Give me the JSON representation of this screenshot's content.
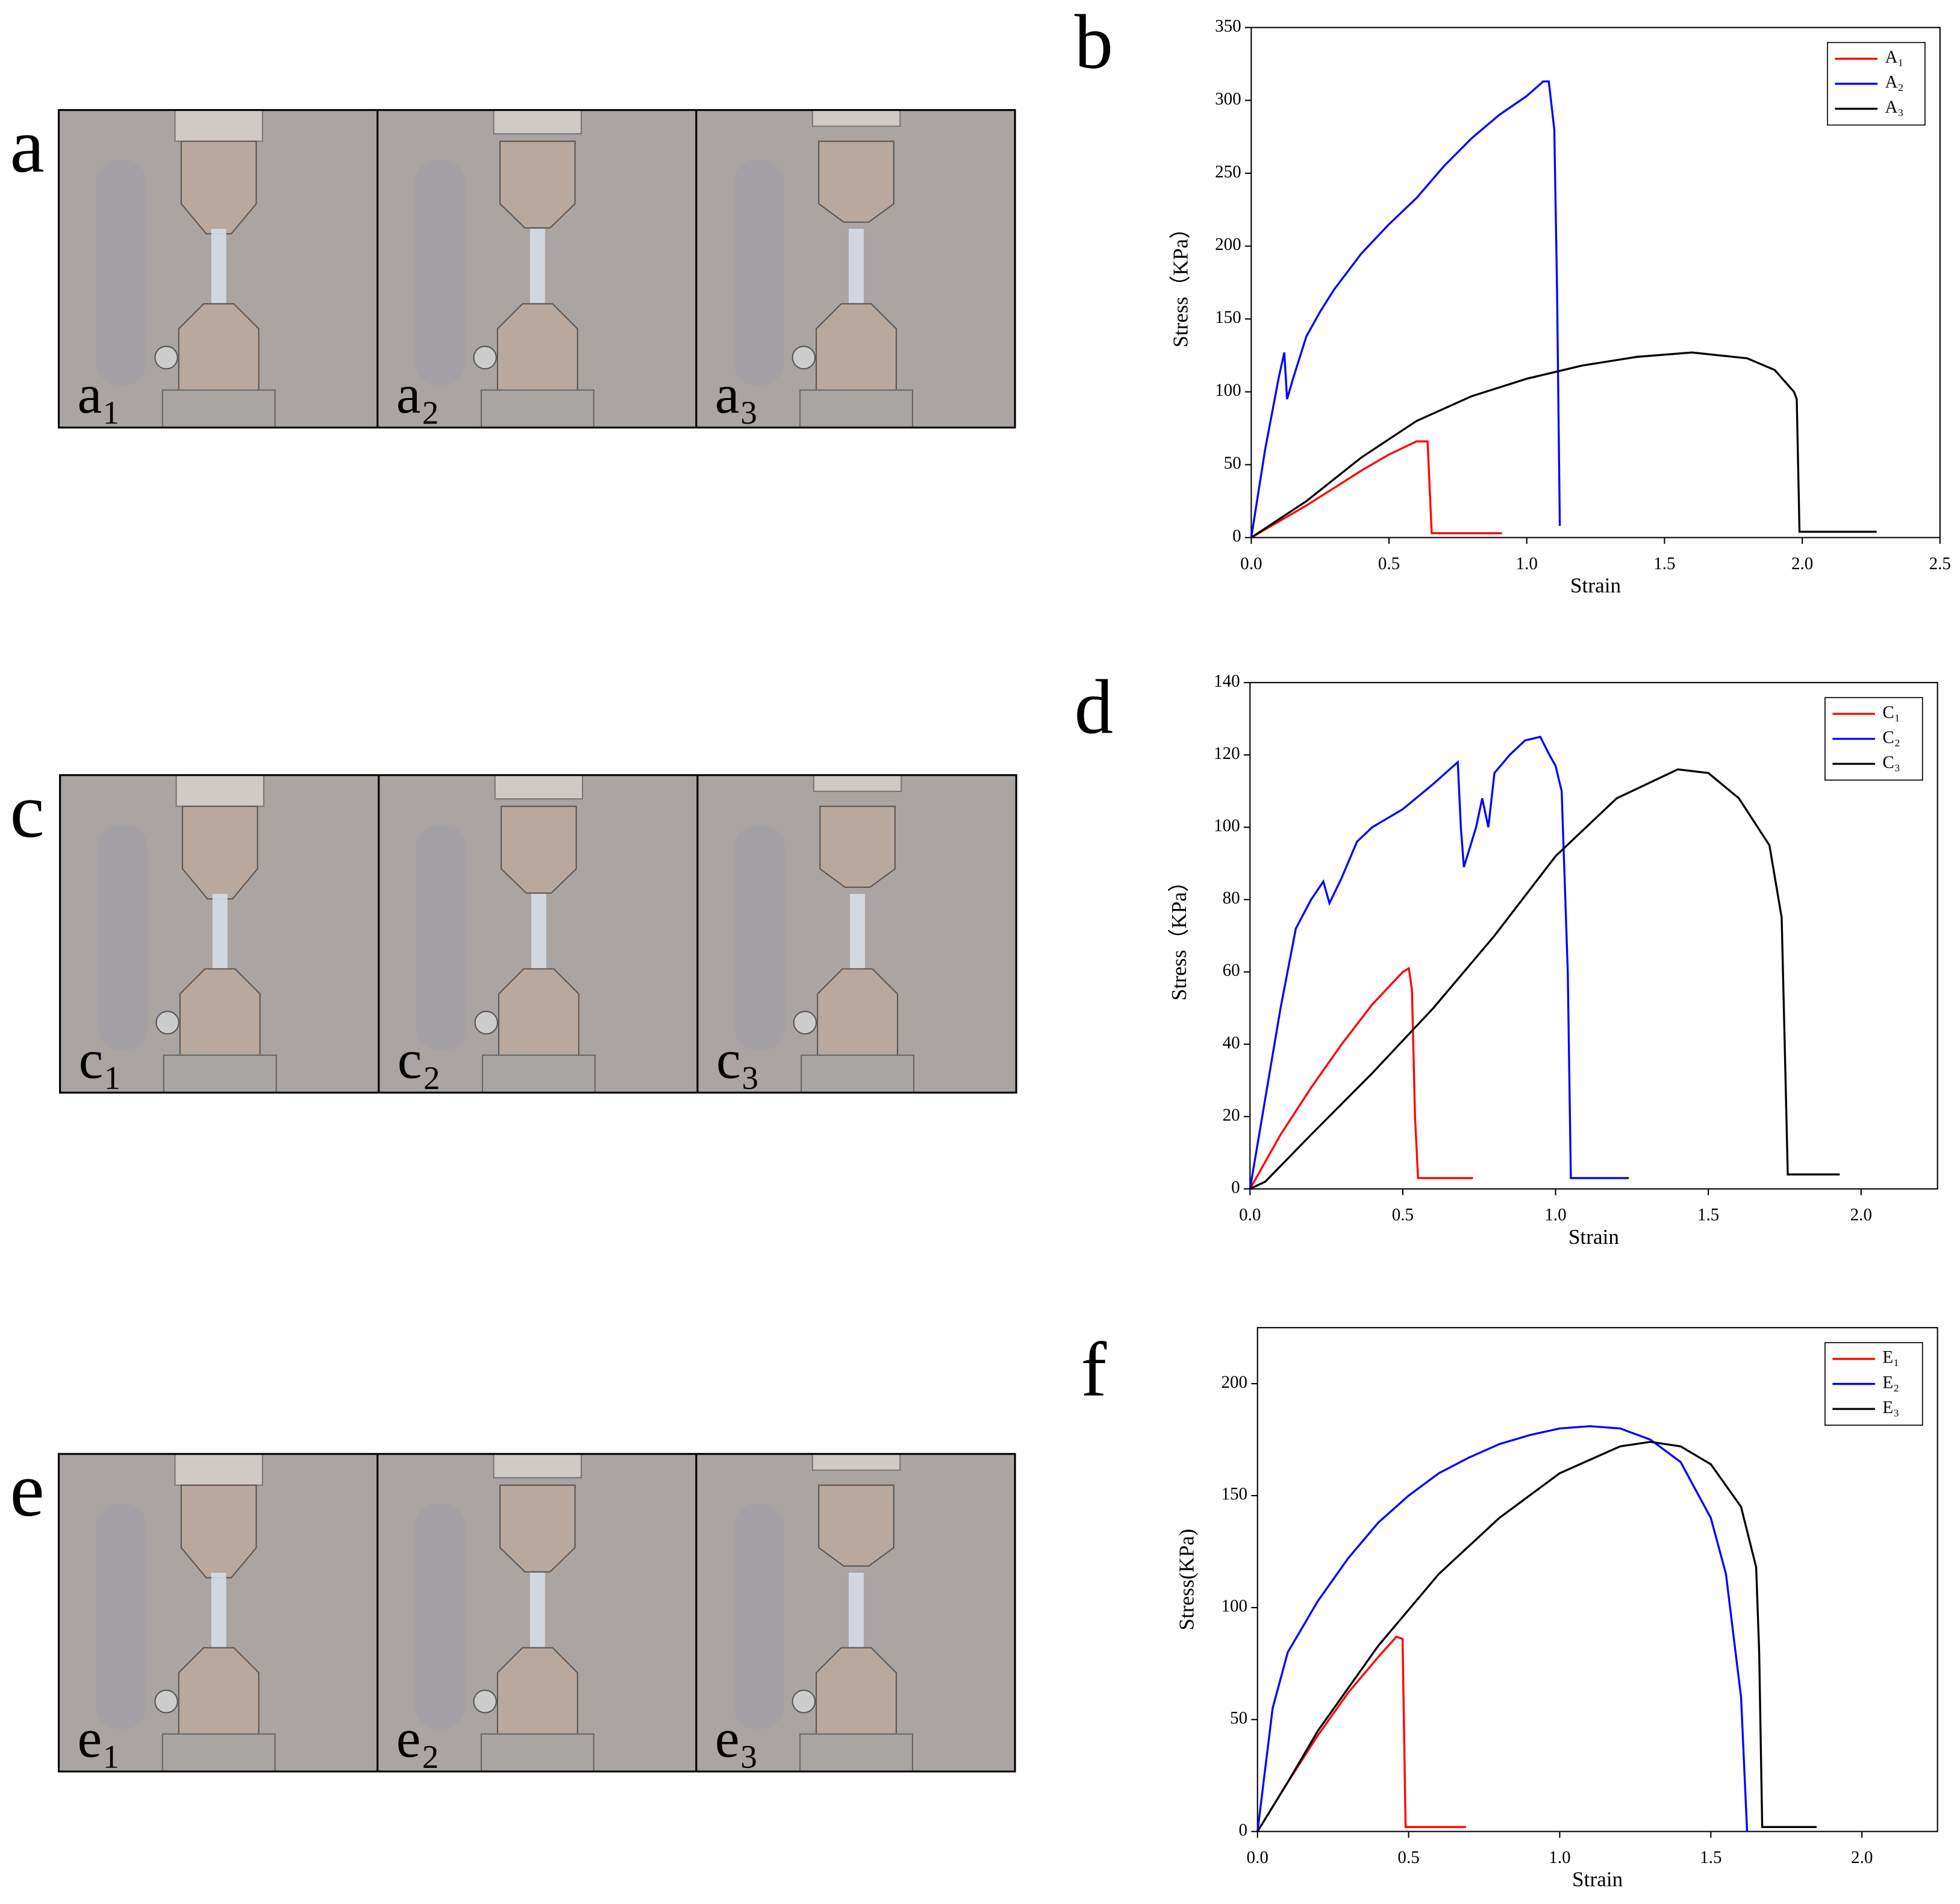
{
  "figure": {
    "panels": [
      {
        "letter": "a",
        "photos": [
          "a₁",
          "a₂",
          "a₃"
        ]
      },
      {
        "letter": "c",
        "photos": [
          "c₁",
          "c₂",
          "c₃"
        ]
      },
      {
        "letter": "e",
        "photos": [
          "e₁",
          "e₂",
          "e₃"
        ]
      }
    ]
  },
  "chart_data": [
    {
      "type": "line",
      "panel_label": "b",
      "x_label": "Strain",
      "y_label": "Stress（KPa）",
      "xlim": [
        0,
        2.5
      ],
      "ylim": [
        0,
        350
      ],
      "xticks": [
        {
          "value": 0,
          "label": "0.0"
        },
        0.5,
        {
          "value": 1,
          "label": "1.0"
        },
        1.5,
        {
          "value": 2,
          "label": "2.0"
        },
        2.5
      ],
      "yticks": [
        0,
        50,
        100,
        150,
        200,
        250,
        300,
        350
      ],
      "grid": false,
      "legend": "upper right",
      "series": [
        {
          "name": "A₁",
          "color": "#ff0000",
          "x": [
            0,
            0.1,
            0.2,
            0.3,
            0.4,
            0.5,
            0.6,
            0.64,
            0.655,
            0.91
          ],
          "values": [
            0,
            11,
            22,
            34,
            46,
            57,
            66,
            66,
            3,
            3
          ]
        },
        {
          "name": "A₂",
          "color": "#0000ff",
          "x": [
            0,
            0.05,
            0.1,
            0.12,
            0.13,
            0.15,
            0.2,
            0.25,
            0.3,
            0.4,
            0.5,
            0.6,
            0.7,
            0.8,
            0.9,
            1.0,
            1.06,
            1.08,
            1.1,
            1.11,
            1.12
          ],
          "values": [
            0,
            60,
            110,
            127,
            95,
            108,
            138,
            155,
            170,
            195,
            215,
            233,
            255,
            274,
            290,
            303,
            313,
            313,
            280,
            170,
            8
          ]
        },
        {
          "name": "A₃",
          "color": "#000000",
          "x": [
            0,
            0.2,
            0.4,
            0.6,
            0.8,
            1.0,
            1.2,
            1.4,
            1.6,
            1.8,
            1.9,
            1.97,
            1.98,
            1.99,
            2.27
          ],
          "values": [
            0,
            25,
            55,
            80,
            97,
            109,
            118,
            124,
            127,
            123,
            115,
            100,
            95,
            4,
            4
          ]
        }
      ]
    },
    {
      "type": "line",
      "panel_label": "d",
      "x_label": "Strain",
      "y_label": "Stress（KPa）",
      "xlim": [
        0,
        2.25
      ],
      "ylim": [
        0,
        140
      ],
      "xticks": [
        {
          "value": 0,
          "label": "0.0"
        },
        0.5,
        {
          "value": 1,
          "label": "1.0"
        },
        1.5,
        {
          "value": 2,
          "label": "2.0"
        }
      ],
      "yticks": [
        0,
        20,
        40,
        60,
        80,
        100,
        120,
        140
      ],
      "grid": false,
      "legend": "upper right",
      "series": [
        {
          "name": "C₁",
          "color": "#ff0000",
          "x": [
            0,
            0.1,
            0.2,
            0.3,
            0.4,
            0.5,
            0.52,
            0.53,
            0.54,
            0.55,
            0.73
          ],
          "values": [
            0,
            15,
            28,
            40,
            51,
            60,
            61,
            55,
            20,
            3,
            3
          ]
        },
        {
          "name": "C₂",
          "color": "#0000ff",
          "x": [
            0,
            0.05,
            0.1,
            0.15,
            0.2,
            0.24,
            0.26,
            0.3,
            0.35,
            0.4,
            0.5,
            0.6,
            0.68,
            0.69,
            0.7,
            0.74,
            0.76,
            0.78,
            0.8,
            0.85,
            0.9,
            0.95,
            0.98,
            1.0,
            1.02,
            1.04,
            1.05,
            1.24
          ],
          "values": [
            0,
            25,
            50,
            72,
            80,
            85,
            79,
            86,
            96,
            100,
            105,
            112,
            118,
            100,
            89,
            100,
            108,
            100,
            115,
            120,
            124,
            125,
            120,
            117,
            110,
            60,
            3,
            3
          ]
        },
        {
          "name": "C₃",
          "color": "#000000",
          "x": [
            0,
            0.05,
            0.2,
            0.4,
            0.6,
            0.8,
            1.0,
            1.2,
            1.4,
            1.5,
            1.6,
            1.7,
            1.74,
            1.75,
            1.76,
            1.93
          ],
          "values": [
            0,
            2,
            15,
            32,
            50,
            70,
            92,
            108,
            116,
            115,
            108,
            95,
            75,
            40,
            4,
            4
          ]
        }
      ]
    },
    {
      "type": "line",
      "panel_label": "f",
      "x_label": "Strain",
      "y_label": "Stress(KPa)",
      "xlim": [
        0,
        2.25
      ],
      "ylim": [
        0,
        225
      ],
      "xticks": [
        {
          "value": 0,
          "label": "0.0"
        },
        0.5,
        {
          "value": 1,
          "label": "1.0"
        },
        1.5,
        {
          "value": 2,
          "label": "2.0"
        }
      ],
      "yticks": [
        0,
        50,
        100,
        150,
        200
      ],
      "grid": false,
      "legend": "upper right",
      "series": [
        {
          "name": "E₁",
          "color": "#ff0000",
          "x": [
            0,
            0.1,
            0.2,
            0.3,
            0.4,
            0.46,
            0.48,
            0.49,
            0.69
          ],
          "values": [
            0,
            22,
            43,
            62,
            78,
            87,
            86,
            2,
            2
          ]
        },
        {
          "name": "E₂",
          "color": "#0000ff",
          "x": [
            0,
            0.05,
            0.1,
            0.2,
            0.3,
            0.4,
            0.5,
            0.6,
            0.7,
            0.8,
            0.9,
            1.0,
            1.1,
            1.2,
            1.3,
            1.4,
            1.5,
            1.55,
            1.6,
            1.62
          ],
          "values": [
            0,
            55,
            80,
            103,
            122,
            138,
            150,
            160,
            167,
            173,
            177,
            180,
            181,
            180,
            175,
            165,
            140,
            115,
            60,
            0
          ]
        },
        {
          "name": "E₃",
          "color": "#000000",
          "x": [
            0,
            0.1,
            0.2,
            0.4,
            0.6,
            0.8,
            1.0,
            1.2,
            1.3,
            1.4,
            1.5,
            1.6,
            1.65,
            1.66,
            1.67,
            1.85
          ],
          "values": [
            0,
            22,
            45,
            83,
            115,
            140,
            160,
            172,
            174,
            172,
            164,
            145,
            118,
            80,
            2,
            2
          ]
        }
      ]
    }
  ]
}
